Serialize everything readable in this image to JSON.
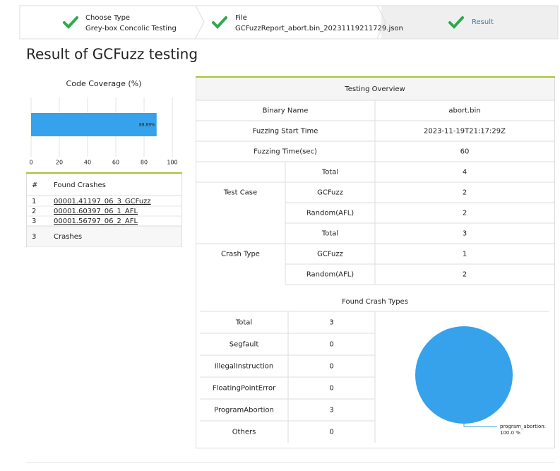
{
  "steps": [
    {
      "title": "Choose Type",
      "subtitle": "Grey-box Concolic Testing"
    },
    {
      "title": "File",
      "subtitle": "GCFuzzReport_abort.bin_20231119211729.json"
    },
    {
      "title": "Result"
    }
  ],
  "page_title": "Result of GCFuzz testing",
  "coverage": {
    "chart_data": {
      "type": "bar",
      "title": "Code Coverage (%)",
      "values": [
        88.89
      ],
      "value_labels": [
        "88.89%"
      ],
      "color": "#36a2eb",
      "xlim": [
        0,
        100
      ],
      "xticks": [
        0,
        20,
        40,
        60,
        80,
        100
      ],
      "grid": true
    }
  },
  "crashes": {
    "header": [
      "#",
      "Found Crashes"
    ],
    "rows": [
      [
        "1",
        "00001.41197_06_3_GCFuzz"
      ],
      [
        "2",
        "00001.60397_06_1_AFL"
      ],
      [
        "3",
        "00001.56797_06_2_AFL"
      ]
    ],
    "footer": [
      "3",
      "Crashes"
    ]
  },
  "overview": {
    "title": "Testing Overview",
    "rows": [
      {
        "label": "Binary Name",
        "value": "abort.bin"
      },
      {
        "label": "Fuzzing Start Time",
        "value": "2023-11-19T21:17:29Z"
      },
      {
        "label": "Fuzzing Time(sec)",
        "value": "60"
      }
    ],
    "groups": [
      {
        "label": "Test Case",
        "rows": [
          {
            "label": "Total",
            "value": "4"
          },
          {
            "label": "GCFuzz",
            "value": "2"
          },
          {
            "label": "Random(AFL)",
            "value": "2"
          }
        ]
      },
      {
        "label": "Crash Type",
        "rows": [
          {
            "label": "Total",
            "value": "3"
          },
          {
            "label": "GCFuzz",
            "value": "1"
          },
          {
            "label": "Random(AFL)",
            "value": "2"
          }
        ]
      }
    ]
  },
  "crash_types": {
    "title": "Found Crash Types",
    "rows": [
      {
        "label": "Total",
        "value": "3"
      },
      {
        "label": "Segfault",
        "value": "0"
      },
      {
        "label": "IllegalInstruction",
        "value": "0"
      },
      {
        "label": "FloatingPointError",
        "value": "0"
      },
      {
        "label": "ProgramAbortion",
        "value": "3"
      },
      {
        "label": "Others",
        "value": "0"
      }
    ],
    "chart_data": {
      "type": "pie",
      "categories": [
        "program_abortion:"
      ],
      "values": [
        100
      ],
      "value_labels": [
        "100.0 %"
      ],
      "colors": [
        "#36a2eb"
      ]
    }
  }
}
